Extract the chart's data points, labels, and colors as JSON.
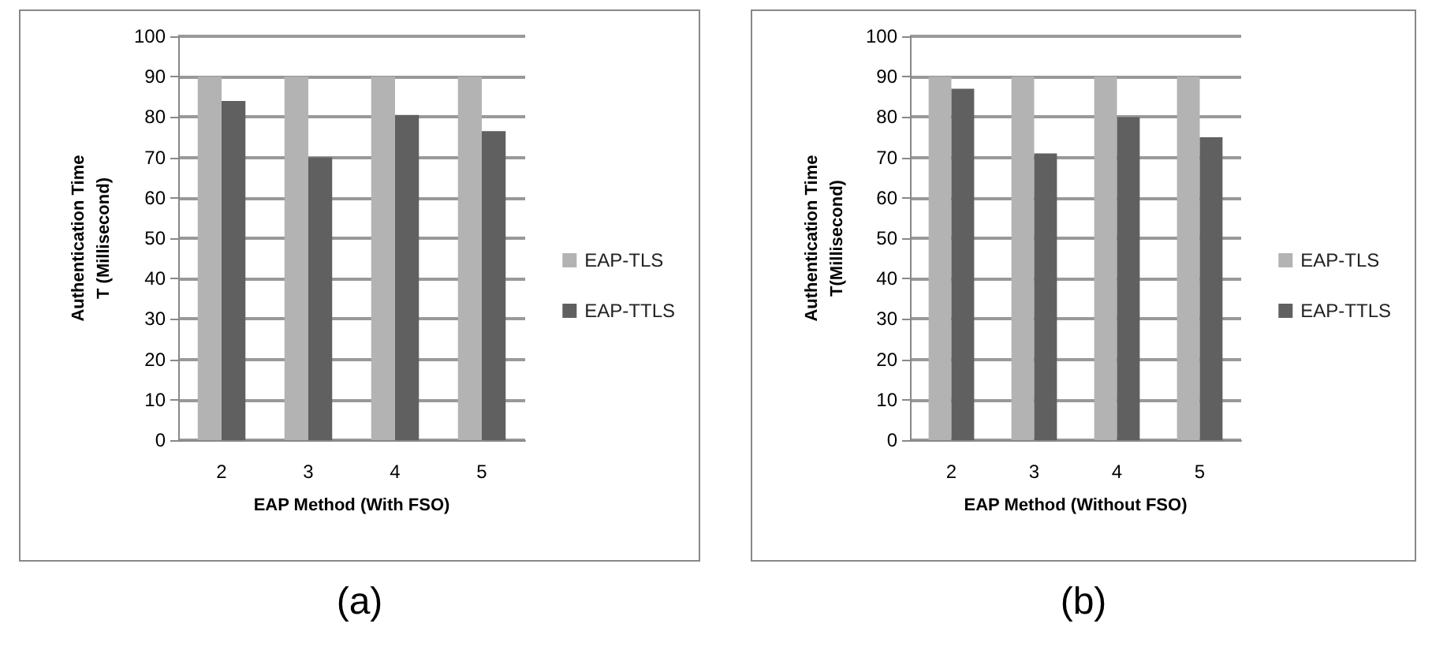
{
  "chart_data": [
    {
      "type": "bar",
      "xlabel": "EAP Method (With FSO)",
      "ylabel": "Authentication Time\nT (Millisecond)",
      "categories": [
        "2",
        "3",
        "4",
        "5"
      ],
      "series": [
        {
          "name": "EAP-TLS",
          "color": "#b3b3b3",
          "values": [
            90,
            90,
            90,
            90
          ]
        },
        {
          "name": "EAP-TTLS",
          "color": "#606060",
          "values": [
            84,
            70,
            80.5,
            76.5
          ]
        }
      ],
      "ylim": [
        0,
        100
      ],
      "yticks": [
        0,
        10,
        20,
        30,
        40,
        50,
        60,
        70,
        80,
        90,
        100
      ],
      "grid": "y",
      "legend": "right",
      "annotations": [
        "(a)"
      ]
    },
    {
      "type": "bar",
      "xlabel": "EAP Method (Without FSO)",
      "ylabel": "Authentication Time\nT(Millisecond)",
      "categories": [
        "2",
        "3",
        "4",
        "5"
      ],
      "series": [
        {
          "name": "EAP-TLS",
          "color": "#b3b3b3",
          "values": [
            90,
            90,
            90,
            90
          ]
        },
        {
          "name": "EAP-TTLS",
          "color": "#606060",
          "values": [
            87,
            71,
            80,
            75
          ]
        }
      ],
      "ylim": [
        0,
        100
      ],
      "yticks": [
        0,
        10,
        20,
        30,
        40,
        50,
        60,
        70,
        80,
        90,
        100
      ],
      "grid": "y",
      "legend": "right",
      "annotations": [
        "(b)"
      ]
    }
  ]
}
